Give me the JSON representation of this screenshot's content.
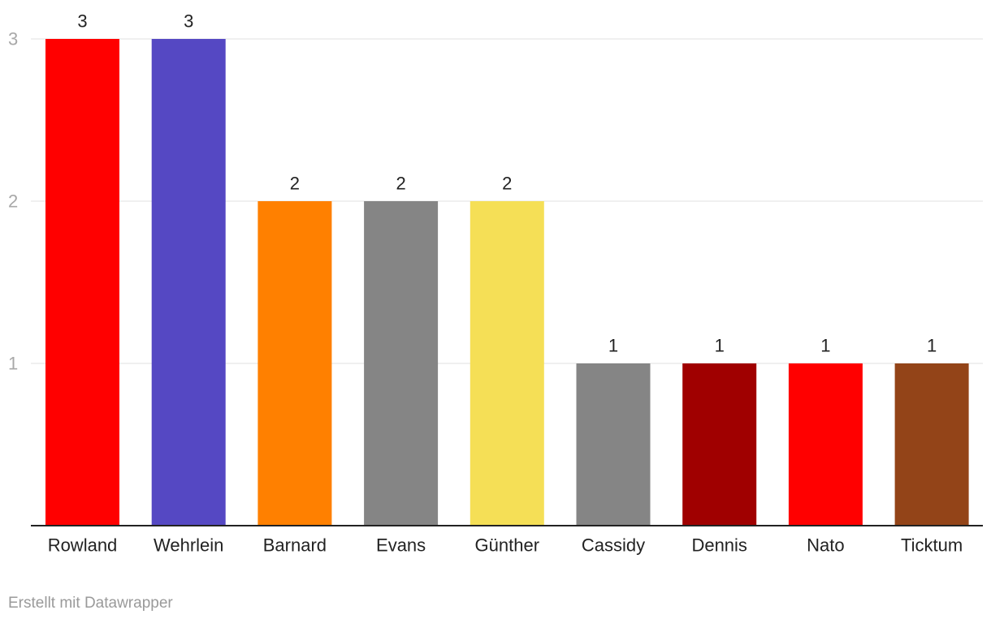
{
  "chart_data": {
    "type": "bar",
    "categories": [
      "Rowland",
      "Wehrlein",
      "Barnard",
      "Evans",
      "Günther",
      "Cassidy",
      "Dennis",
      "Nato",
      "Ticktum"
    ],
    "values": [
      3,
      3,
      2,
      2,
      2,
      1,
      1,
      1,
      1
    ],
    "colors": [
      "#ff0000",
      "#5548c3",
      "#ff8000",
      "#858585",
      "#f5df56",
      "#858585",
      "#a00000",
      "#ff0000",
      "#934418"
    ],
    "ylim": [
      0,
      3
    ],
    "yticks": [
      1,
      2,
      3
    ],
    "grid": true,
    "data_labels": true
  },
  "footer": {
    "credit": "Erstellt mit Datawrapper"
  }
}
